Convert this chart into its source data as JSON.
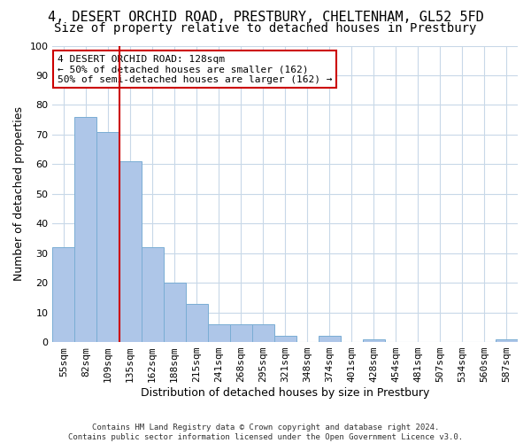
{
  "title_line1": "4, DESERT ORCHID ROAD, PRESTBURY, CHELTENHAM, GL52 5FD",
  "title_line2": "Size of property relative to detached houses in Prestbury",
  "xlabel": "Distribution of detached houses by size in Prestbury",
  "ylabel": "Number of detached properties",
  "footer_line1": "Contains HM Land Registry data © Crown copyright and database right 2024.",
  "footer_line2": "Contains public sector information licensed under the Open Government Licence v3.0.",
  "bin_labels": [
    "55sqm",
    "82sqm",
    "109sqm",
    "135sqm",
    "162sqm",
    "188sqm",
    "215sqm",
    "241sqm",
    "268sqm",
    "295sqm",
    "321sqm",
    "348sqm",
    "374sqm",
    "401sqm",
    "428sqm",
    "454sqm",
    "481sqm",
    "507sqm",
    "534sqm",
    "560sqm",
    "587sqm"
  ],
  "bar_values": [
    32,
    76,
    71,
    61,
    32,
    20,
    13,
    6,
    6,
    6,
    2,
    0,
    2,
    0,
    1,
    0,
    0,
    0,
    0,
    0,
    1
  ],
  "bar_color": "#aec6e8",
  "bar_edge_color": "#7aadd4",
  "vline_position": 2.5,
  "vline_color": "#cc0000",
  "annotation_text": "4 DESERT ORCHID ROAD: 128sqm\n← 50% of detached houses are smaller (162)\n50% of semi-detached houses are larger (162) →",
  "annotation_box_color": "#ffffff",
  "annotation_box_edge": "#cc0000",
  "ylim": [
    0,
    100
  ],
  "yticks": [
    0,
    10,
    20,
    30,
    40,
    50,
    60,
    70,
    80,
    90,
    100
  ],
  "background_color": "#ffffff",
  "grid_color": "#c8d8e8",
  "title_fontsize": 11,
  "subtitle_fontsize": 10,
  "axis_label_fontsize": 9,
  "tick_fontsize": 8
}
